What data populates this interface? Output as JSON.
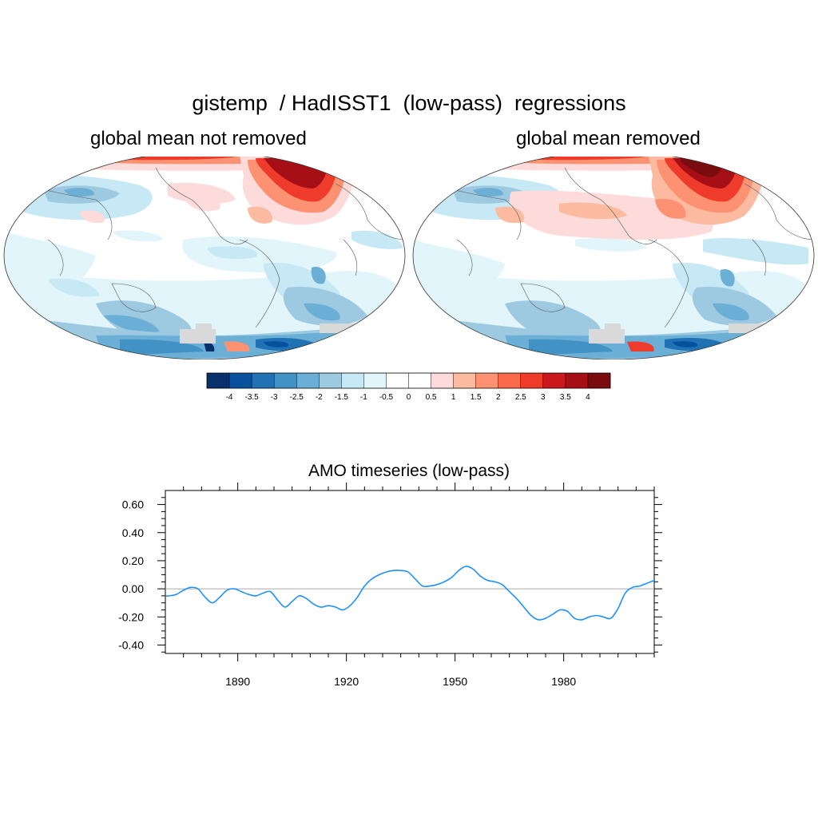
{
  "main_title": "gistemp  / HadISST1  (low-pass)  regressions",
  "map_left": {
    "title": "global mean not removed"
  },
  "map_right": {
    "title": "global mean removed"
  },
  "colorbar": {
    "labels": [
      "-4",
      "-3.5",
      "-3",
      "-2.5",
      "-2",
      "-1.5",
      "-1",
      "-0.5",
      "0",
      "0.5",
      "1",
      "1.5",
      "2",
      "2.5",
      "3",
      "3.5",
      "4"
    ],
    "colors": [
      "#08306b",
      "#08519c",
      "#2171b5",
      "#4292c6",
      "#6baed6",
      "#9ecae1",
      "#c6e9f5",
      "#e2f5fb",
      "#ffffff",
      "#ffffff",
      "#fddbdb",
      "#fcbba1",
      "#fc9272",
      "#fb6a4a",
      "#ef3b2c",
      "#cb181d",
      "#a50f15",
      "#7a0b0f"
    ]
  },
  "chart_data": {
    "type": "line",
    "title": "AMO timeseries (low-pass)",
    "xlabel": "",
    "ylabel": "",
    "xlim": [
      1870,
      2005
    ],
    "ylim": [
      -0.46,
      0.7
    ],
    "x_ticks": [
      1890,
      1920,
      1950,
      1980
    ],
    "y_ticks": [
      0.6,
      0.4,
      0.2,
      0.0,
      -0.2,
      -0.4
    ],
    "y_tick_labels": [
      "0.60",
      "0.40",
      "0.20",
      "0.00",
      "-0.20",
      "-0.40"
    ],
    "reference_line": 0.0,
    "line_color": "#1e90ff",
    "series": [
      {
        "name": "AMO",
        "x": [
          1870,
          1871,
          1873,
          1875,
          1877,
          1879,
          1881,
          1883,
          1885,
          1887,
          1889,
          1891,
          1893,
          1895,
          1897,
          1899,
          1901,
          1903,
          1905,
          1907,
          1909,
          1911,
          1913,
          1915,
          1917,
          1919,
          1921,
          1923,
          1925,
          1927,
          1929,
          1931,
          1933,
          1935,
          1937,
          1939,
          1941,
          1943,
          1945,
          1947,
          1949,
          1951,
          1953,
          1955,
          1957,
          1959,
          1961,
          1963,
          1965,
          1967,
          1969,
          1971,
          1973,
          1975,
          1977,
          1979,
          1981,
          1983,
          1985,
          1987,
          1989,
          1991,
          1993,
          1995,
          1997,
          1999,
          2001,
          2003,
          2005
        ],
        "values": [
          -0.05,
          -0.05,
          -0.04,
          -0.01,
          0.01,
          0.0,
          -0.06,
          -0.1,
          -0.06,
          -0.01,
          0.0,
          -0.02,
          -0.04,
          -0.05,
          -0.03,
          -0.02,
          -0.08,
          -0.13,
          -0.09,
          -0.05,
          -0.07,
          -0.11,
          -0.13,
          -0.12,
          -0.13,
          -0.15,
          -0.12,
          -0.06,
          0.02,
          0.07,
          0.1,
          0.12,
          0.13,
          0.13,
          0.12,
          0.07,
          0.02,
          0.02,
          0.03,
          0.05,
          0.08,
          0.13,
          0.16,
          0.14,
          0.09,
          0.06,
          0.05,
          0.03,
          -0.02,
          -0.07,
          -0.13,
          -0.19,
          -0.22,
          -0.21,
          -0.18,
          -0.15,
          -0.16,
          -0.21,
          -0.22,
          -0.2,
          -0.19,
          -0.2,
          -0.21,
          -0.14,
          -0.03,
          0.01,
          0.02,
          0.04,
          0.06
        ]
      }
    ]
  }
}
